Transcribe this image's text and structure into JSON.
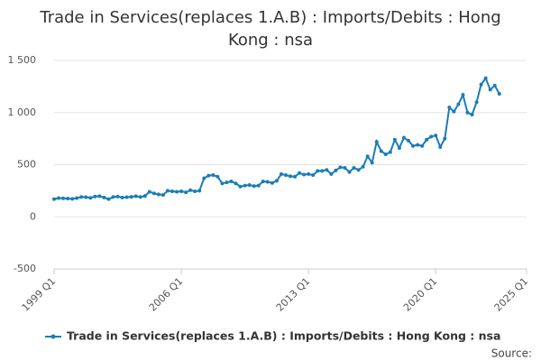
{
  "chart_data": {
    "type": "line",
    "title": "Trade in Services(replaces 1.A.B) : Imports/Debits : Hong Kong : nsa",
    "categories": [
      "1999 Q1",
      null,
      null,
      null,
      null,
      null,
      null,
      null,
      null,
      null,
      null,
      null,
      null,
      null,
      null,
      null,
      null,
      null,
      null,
      null,
      null,
      null,
      null,
      null,
      null,
      null,
      null,
      null,
      "2006 Q1",
      null,
      null,
      null,
      null,
      null,
      null,
      null,
      null,
      null,
      null,
      null,
      null,
      null,
      null,
      null,
      null,
      null,
      null,
      null,
      null,
      null,
      null,
      null,
      null,
      null,
      null,
      null,
      "2013 Q1",
      null,
      null,
      null,
      null,
      null,
      null,
      null,
      null,
      null,
      null,
      null,
      null,
      null,
      null,
      null,
      null,
      null,
      null,
      null,
      null,
      null,
      null,
      null,
      null,
      null,
      null,
      null,
      "2020 Q1",
      null,
      null,
      null,
      null,
      null,
      null,
      null,
      null,
      null,
      null,
      null,
      null,
      null,
      null,
      null,
      null,
      null,
      null,
      null,
      "2025 Q1"
    ],
    "series": [
      {
        "name": "Trade in Services(replaces 1.A.B) : Imports/Debits : Hong Kong : nsa",
        "color": "#1a7db8",
        "values": [
          170,
          180,
          178,
          175,
          172,
          180,
          190,
          188,
          182,
          195,
          198,
          185,
          170,
          190,
          195,
          185,
          188,
          192,
          198,
          190,
          200,
          240,
          225,
          215,
          210,
          250,
          245,
          240,
          245,
          235,
          255,
          245,
          250,
          370,
          395,
          400,
          385,
          320,
          330,
          340,
          320,
          290,
          300,
          305,
          295,
          300,
          340,
          335,
          325,
          345,
          410,
          400,
          390,
          385,
          420,
          405,
          410,
          400,
          440,
          440,
          450,
          410,
          445,
          475,
          470,
          430,
          470,
          450,
          480,
          580,
          520,
          720,
          630,
          600,
          620,
          740,
          660,
          760,
          730,
          680,
          690,
          680,
          740,
          770,
          780,
          670,
          750,
          1050,
          1010,
          1080,
          1170,
          1000,
          980,
          1100,
          1270,
          1330,
          1220,
          1260,
          1180,
          null,
          null,
          null,
          null,
          null,
          null
        ]
      }
    ],
    "ylim": [
      -500,
      1500
    ],
    "yticks": [
      -500,
      0,
      500,
      {
        "value": 1000,
        "label": "1 000"
      },
      {
        "value": 1500,
        "label": "1 500"
      }
    ],
    "grid": true,
    "legend": "bottom",
    "source": "Source:"
  }
}
